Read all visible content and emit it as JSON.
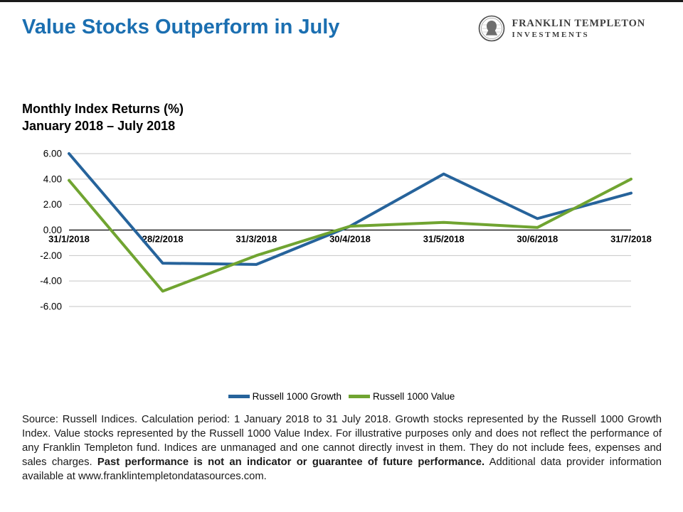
{
  "header": {
    "title": "Value Stocks Outperform in July",
    "logo": {
      "line1": "FRANKLIN TEMPLETON",
      "line2": "INVESTMENTS"
    }
  },
  "chart_heading": {
    "line1": "Monthly Index Returns (%)",
    "line2": "January 2018 – July 2018"
  },
  "chart_data": {
    "type": "line",
    "title": "Monthly Index Returns (%) January 2018 – July 2018",
    "categories": [
      "31/1/2018",
      "28/2/2018",
      "31/3/2018",
      "30/4/2018",
      "31/5/2018",
      "30/6/2018",
      "31/7/2018"
    ],
    "series": [
      {
        "name": "Russell 1000 Growth",
        "color": "#26639b",
        "values": [
          6.0,
          -2.6,
          -2.7,
          0.3,
          4.4,
          0.9,
          2.9
        ]
      },
      {
        "name": "Russell 1000 Value",
        "color": "#70a431",
        "values": [
          3.9,
          -4.8,
          -2.0,
          0.3,
          0.6,
          0.2,
          4.0
        ]
      }
    ],
    "yticks": [
      6,
      4,
      2,
      0,
      -2,
      -4,
      -6
    ],
    "ytick_labels": [
      "6.00",
      "4.00",
      "2.00",
      "0.00",
      "-2.00",
      "-4.00",
      "-6.00"
    ],
    "ylim": [
      -6,
      6
    ],
    "grid": true,
    "legend_position": "bottom"
  },
  "footnote": {
    "normal_1": "Source: Russell Indices. Calculation period: 1 January 2018 to 31 July 2018. Growth stocks represented by the Russell 1000 Growth Index.  Value stocks represented by the Russell 1000 Value Index.  For illustrative purposes only and does not reflect the performance of any Franklin Templeton fund. Indices are unmanaged and one cannot directly invest in them. They do not include fees, expenses and sales charges. ",
    "bold": "Past performance is not an indicator or guarantee of future performance.",
    "normal_2": " Additional data provider information available at www.franklintempletondatasources.com."
  },
  "colors": {
    "title_blue": "#1b6fb1",
    "growth_blue": "#26639b",
    "value_green": "#70a431",
    "grid_gray": "#c6c6c6",
    "axis_black": "#000000"
  }
}
